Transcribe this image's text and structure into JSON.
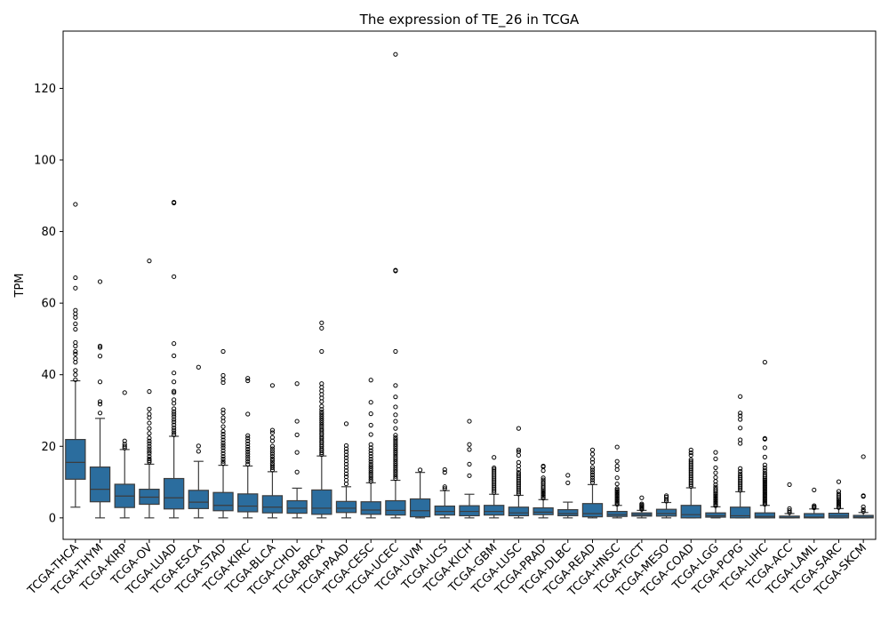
{
  "chart_data": {
    "type": "box",
    "title": "The expression of TE_26 in TCGA",
    "xlabel": "",
    "ylabel": "TPM",
    "ylim": [
      -6,
      136
    ],
    "yticks": [
      0,
      20,
      40,
      60,
      80,
      100,
      120
    ],
    "grid": false,
    "box_color": "#2b6d9e",
    "boxes": [
      {
        "label": "TCGA-THCA",
        "whislo": 3,
        "q1": 10.8,
        "med": 15.5,
        "q3": 21.9,
        "whishi": 38.3,
        "fliers": [
          38.6,
          40,
          41.2,
          43.5,
          44.5,
          45.8,
          46.5,
          48,
          49,
          52.7,
          54.2,
          56,
          57,
          58,
          64.2,
          67.1,
          87.6
        ]
      },
      {
        "label": "TCGA-THYM",
        "whislo": 0,
        "q1": 4.5,
        "med": 8,
        "q3": 14.2,
        "whishi": 27.8,
        "fliers": [
          29.3,
          31.8,
          32.5,
          38,
          45.2,
          47.6,
          48,
          66
        ]
      },
      {
        "label": "TCGA-KIRP",
        "whislo": 0,
        "q1": 2.9,
        "med": 6.1,
        "q3": 9.4,
        "whishi": 19.1,
        "fliers": [
          19.5,
          20,
          20.6,
          21.5,
          35
        ]
      },
      {
        "label": "TCGA-OV",
        "whislo": 0,
        "q1": 3.8,
        "med": 5.8,
        "q3": 8,
        "whishi": 15,
        "fliers": [
          15.6,
          16,
          16.5,
          17.2,
          18,
          18.6,
          19.3,
          20,
          20.8,
          21.5,
          22.3,
          23.6,
          25,
          26.5,
          28,
          29,
          30.4,
          35.3,
          71.8
        ]
      },
      {
        "label": "TCGA-LUAD",
        "whislo": 0,
        "q1": 2.5,
        "med": 5.6,
        "q3": 11,
        "whishi": 22.8,
        "fliers": [
          23.2,
          23.8,
          24.5,
          25.2,
          26,
          26.8,
          27.5,
          28.3,
          29,
          29.7,
          30.5,
          32,
          33,
          35,
          35.4,
          38,
          40.5,
          45.3,
          48.7,
          67.4,
          88,
          88.2
        ]
      },
      {
        "label": "TCGA-ESCA",
        "whislo": 0,
        "q1": 2.6,
        "med": 4.4,
        "q3": 7.7,
        "whishi": 15.8,
        "fliers": [
          18.6,
          20.1,
          42.1
        ]
      },
      {
        "label": "TCGA-STAD",
        "whislo": 0,
        "q1": 2,
        "med": 3.5,
        "q3": 7.1,
        "whishi": 14.7,
        "fliers": [
          15.2,
          15.8,
          16.5,
          17.2,
          18,
          18.8,
          19.6,
          20.3,
          21,
          21.8,
          22.6,
          23.4,
          24.2,
          25.5,
          27,
          28,
          29.3,
          30.2,
          37.8,
          38.7,
          39.8,
          46.5
        ]
      },
      {
        "label": "TCGA-KIRC",
        "whislo": 0,
        "q1": 1.7,
        "med": 3.3,
        "q3": 6.7,
        "whishi": 14.5,
        "fliers": [
          15,
          15.7,
          16.4,
          17.1,
          17.8,
          18.5,
          19.2,
          19.9,
          20.7,
          21.5,
          22.3,
          23,
          29,
          38.3,
          39
        ]
      },
      {
        "label": "TCGA-BLCA",
        "whislo": 0,
        "q1": 1.4,
        "med": 3,
        "q3": 6.2,
        "whishi": 12.9,
        "fliers": [
          13.4,
          14,
          14.6,
          15.2,
          15.9,
          16.5,
          17.2,
          17.9,
          18.6,
          19.3,
          20,
          21.5,
          22.5,
          23.8,
          24.5,
          37
        ]
      },
      {
        "label": "TCGA-CHOL",
        "whislo": 0,
        "q1": 1.3,
        "med": 2.7,
        "q3": 4.8,
        "whishi": 8.3,
        "fliers": [
          12.8,
          18.3,
          23.2,
          27,
          37.5
        ]
      },
      {
        "label": "TCGA-BRCA",
        "whislo": 0,
        "q1": 1,
        "med": 2.7,
        "q3": 7.8,
        "whishi": 17.3,
        "fliers": [
          17.7,
          18.2,
          18.8,
          19.3,
          19.9,
          20.4,
          21,
          21.5,
          22.1,
          22.6,
          23.2,
          23.7,
          24.3,
          24.8,
          25.4,
          26,
          26.6,
          27.2,
          27.8,
          28.4,
          29,
          29.6,
          30.3,
          31.2,
          32.5,
          33.5,
          34.5,
          35.5,
          36.5,
          37.5,
          46.5,
          53,
          54.5
        ]
      },
      {
        "label": "TCGA-PAAD",
        "whislo": 0,
        "q1": 1.5,
        "med": 2.7,
        "q3": 4.6,
        "whishi": 8.7,
        "fliers": [
          9.5,
          10.5,
          11.5,
          12.3,
          13.2,
          14.1,
          15,
          15.9,
          16.8,
          17.6,
          18.5,
          19.3,
          20.2,
          26.3
        ]
      },
      {
        "label": "TCGA-CESC",
        "whislo": 0,
        "q1": 1,
        "med": 2.2,
        "q3": 4.5,
        "whishi": 9.8,
        "fliers": [
          10.2,
          10.8,
          11.4,
          12,
          12.6,
          13.2,
          13.8,
          14.4,
          15,
          15.7,
          16.4,
          17.2,
          18,
          18.8,
          19.6,
          20.5,
          23.3,
          25.9,
          29.1,
          32.3,
          38.5
        ]
      },
      {
        "label": "TCGA-UCEC",
        "whislo": 0,
        "q1": 0.8,
        "med": 2.1,
        "q3": 4.8,
        "whishi": 10.5,
        "fliers": [
          11,
          11.6,
          12.2,
          12.8,
          13.4,
          14,
          14.6,
          15.2,
          15.8,
          16.4,
          17,
          17.6,
          18.2,
          18.8,
          19.4,
          20,
          20.6,
          21.2,
          21.8,
          22.4,
          23.1,
          25,
          27,
          28.8,
          31,
          33.8,
          37,
          46.5,
          69,
          69.2,
          129.5
        ]
      },
      {
        "label": "TCGA-UVM",
        "whislo": 0,
        "q1": 0.3,
        "med": 2,
        "q3": 5.3,
        "whishi": 12.7,
        "fliers": [
          13.4
        ]
      },
      {
        "label": "TCGA-UCS",
        "whislo": 0,
        "q1": 0.8,
        "med": 1.8,
        "q3": 3.3,
        "whishi": 7.6,
        "fliers": [
          8.2,
          8.7,
          12.7,
          13.5
        ]
      },
      {
        "label": "TCGA-KICH",
        "whislo": 0,
        "q1": 0.6,
        "med": 1.8,
        "q3": 3.4,
        "whishi": 6.6,
        "fliers": [
          11.8,
          15,
          19.1,
          20.5,
          27
        ]
      },
      {
        "label": "TCGA-GBM",
        "whislo": 0,
        "q1": 0.8,
        "med": 1.8,
        "q3": 3.5,
        "whishi": 6.6,
        "fliers": [
          7.1,
          7.6,
          8.1,
          8.6,
          9.1,
          9.6,
          10.1,
          10.6,
          11.1,
          11.6,
          12.1,
          12.6,
          13.1,
          13.6,
          14,
          16.9
        ]
      },
      {
        "label": "TCGA-LUSC",
        "whislo": 0,
        "q1": 0.6,
        "med": 1.4,
        "q3": 3,
        "whishi": 6.3,
        "fliers": [
          6.7,
          7.2,
          7.7,
          8.2,
          8.7,
          9.2,
          9.7,
          10.2,
          10.7,
          11.2,
          11.7,
          12.2,
          12.7,
          13.5,
          14.5,
          15.5,
          17.5,
          18.5,
          19,
          25
        ]
      },
      {
        "label": "TCGA-PRAD",
        "whislo": 0,
        "q1": 0.9,
        "med": 1.6,
        "q3": 2.8,
        "whishi": 5.1,
        "fliers": [
          5.5,
          5.9,
          6.3,
          6.7,
          7.1,
          7.5,
          7.9,
          8.4,
          8.9,
          9.5,
          10,
          10.6,
          11.2,
          13.2,
          14.3,
          14.5
        ]
      },
      {
        "label": "TCGA-DLBC",
        "whislo": 0,
        "q1": 0.6,
        "med": 1.2,
        "q3": 2.3,
        "whishi": 4.4,
        "fliers": [
          9.8,
          11.9
        ]
      },
      {
        "label": "TCGA-READ",
        "whislo": 0,
        "q1": 0.3,
        "med": 1.2,
        "q3": 4,
        "whishi": 9.3,
        "fliers": [
          9.9,
          10.6,
          11.3,
          12,
          12.7,
          13.4,
          14.1,
          15.5,
          16.4,
          17.8,
          19
        ]
      },
      {
        "label": "TCGA-HNSC",
        "whislo": 0,
        "q1": 0.4,
        "med": 0.9,
        "q3": 1.8,
        "whishi": 3.5,
        "fliers": [
          3.8,
          4.2,
          4.6,
          5,
          5.4,
          5.8,
          6.2,
          6.6,
          7,
          7.4,
          7.8,
          8.2,
          9.5,
          11.2,
          13.5,
          14.5,
          15.8,
          19.8
        ]
      },
      {
        "label": "TCGA-TGCT",
        "whislo": 0,
        "q1": 0.5,
        "med": 0.9,
        "q3": 1.4,
        "whishi": 2.1,
        "fliers": [
          2.4,
          2.7,
          3,
          3.3,
          3.6,
          3.9,
          5.6
        ]
      },
      {
        "label": "TCGA-MESO",
        "whislo": 0,
        "q1": 0.5,
        "med": 1.2,
        "q3": 2.4,
        "whishi": 4.3,
        "fliers": [
          4.7,
          5.2,
          5.8,
          6.2
        ]
      },
      {
        "label": "TCGA-COAD",
        "whislo": 0,
        "q1": 0,
        "med": 0.9,
        "q3": 3.5,
        "whishi": 8.4,
        "fliers": [
          8.8,
          9.3,
          9.8,
          10.3,
          10.8,
          11.3,
          11.8,
          12.3,
          12.8,
          13.3,
          13.8,
          14.3,
          14.8,
          15.3,
          15.8,
          16.3,
          17.5,
          18.2,
          19
        ]
      },
      {
        "label": "TCGA-LGG",
        "whislo": 0,
        "q1": 0.2,
        "med": 0.6,
        "q3": 1.4,
        "whishi": 3.1,
        "fliers": [
          3.4,
          3.8,
          4.2,
          4.6,
          5,
          5.4,
          5.8,
          6.2,
          6.6,
          7,
          7.5,
          8,
          8.6,
          9.3,
          10.2,
          11.3,
          12.6,
          14,
          16.5,
          18.3
        ]
      },
      {
        "label": "TCGA-PCPG",
        "whislo": 0,
        "q1": 0,
        "med": 0.6,
        "q3": 3,
        "whishi": 7.3,
        "fliers": [
          7.7,
          8.2,
          8.7,
          9.2,
          9.7,
          10.2,
          10.7,
          11.2,
          11.7,
          12.3,
          13,
          13.8,
          20.8,
          21.8,
          25.1,
          27.5,
          28.5,
          29.3,
          33.9
        ]
      },
      {
        "label": "TCGA-LIHC",
        "whislo": 0,
        "q1": 0,
        "med": 0.4,
        "q3": 1.4,
        "whishi": 3.5,
        "fliers": [
          3.8,
          4.2,
          4.6,
          5,
          5.4,
          5.8,
          6.2,
          6.6,
          7,
          7.4,
          7.8,
          8.2,
          8.6,
          9,
          9.4,
          9.8,
          10.2,
          10.6,
          11,
          11.5,
          12,
          12.6,
          13.3,
          14,
          14.8,
          17,
          19.6,
          22,
          22.2,
          43.5
        ]
      },
      {
        "label": "TCGA-ACC",
        "whislo": 0,
        "q1": 0,
        "med": 0.1,
        "q3": 0.5,
        "whishi": 1.2,
        "fliers": [
          1.5,
          2,
          2.6,
          9.3
        ]
      },
      {
        "label": "TCGA-LAML",
        "whislo": 0,
        "q1": 0,
        "med": 0.2,
        "q3": 1.2,
        "whishi": 2.5,
        "fliers": [
          2.8,
          3.1,
          3.4,
          7.8
        ]
      },
      {
        "label": "TCGA-SARC",
        "whislo": 0,
        "q1": 0,
        "med": 0.5,
        "q3": 1.3,
        "whishi": 2.6,
        "fliers": [
          2.9,
          3.2,
          3.6,
          4,
          4.4,
          4.8,
          5.2,
          5.7,
          6.2,
          6.7,
          7.4,
          10.1
        ]
      },
      {
        "label": "TCGA-SKCM",
        "whislo": 0,
        "q1": 0,
        "med": 0.2,
        "q3": 0.7,
        "whishi": 1.5,
        "fliers": [
          1.8,
          2.3,
          3.1,
          6,
          6.2,
          17.1
        ]
      }
    ]
  }
}
